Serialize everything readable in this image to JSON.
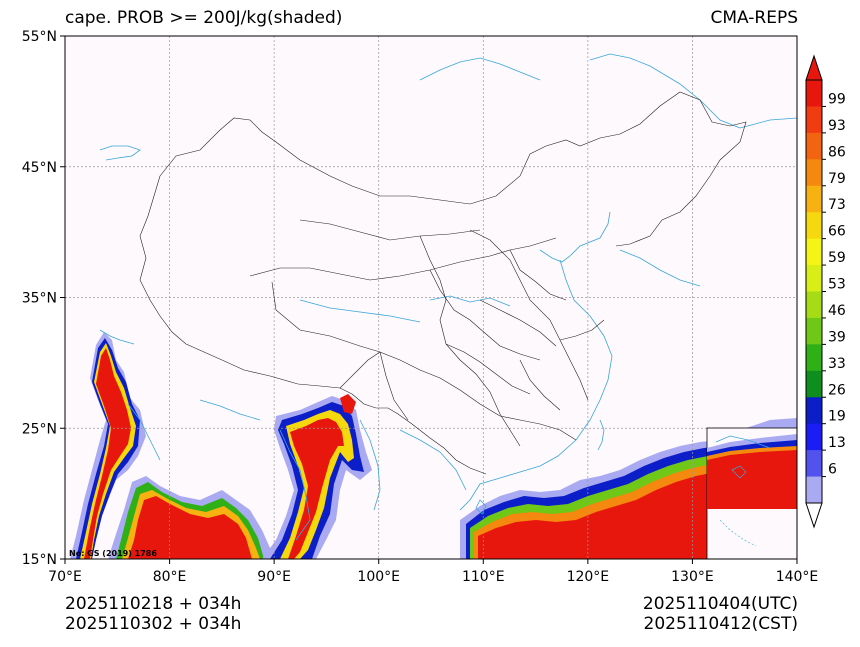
{
  "title_left": "cape. PROB >= 200J/kg(shaded)",
  "title_right": "CMA-REPS",
  "footer_left": [
    "2025110218  +  034h",
    "2025110302  +  034h"
  ],
  "footer_right": [
    "2025110404(UTC)",
    "2025110412(CST)"
  ],
  "map_note": "No: GS (2019) 1786",
  "axes": {
    "lon_ticks": [
      "70°E",
      "80°E",
      "90°E",
      "100°E",
      "110°E",
      "120°E",
      "130°E",
      "140°E"
    ],
    "lat_ticks": [
      "55°N",
      "45°N",
      "35°N",
      "25°N",
      "15°N"
    ],
    "lon_values": [
      70,
      80,
      90,
      100,
      110,
      120,
      130,
      140
    ],
    "lat_values": [
      55,
      45,
      35,
      25,
      15
    ]
  },
  "colorbar": {
    "labels": [
      "99",
      "93",
      "86",
      "79",
      "73",
      "66",
      "59",
      "53",
      "46",
      "39",
      "33",
      "26",
      "19",
      "13",
      "6"
    ],
    "colors": [
      "#e8170e",
      "#f03c10",
      "#f2640f",
      "#f5890f",
      "#f7b111",
      "#f6d80f",
      "#f4f514",
      "#d9ee16",
      "#a6dc16",
      "#6fc717",
      "#2fb016",
      "#0e8e1f",
      "#0c1ec8",
      "#1c1cf5",
      "#5252ee",
      "#aaaaf3"
    ],
    "over_color": "#e8170e",
    "under_color": "#ffffff"
  },
  "colors": {
    "coast": "#3aa6d8",
    "border": "#222222",
    "grid": "#999999",
    "background": "#fdf9fd"
  }
}
